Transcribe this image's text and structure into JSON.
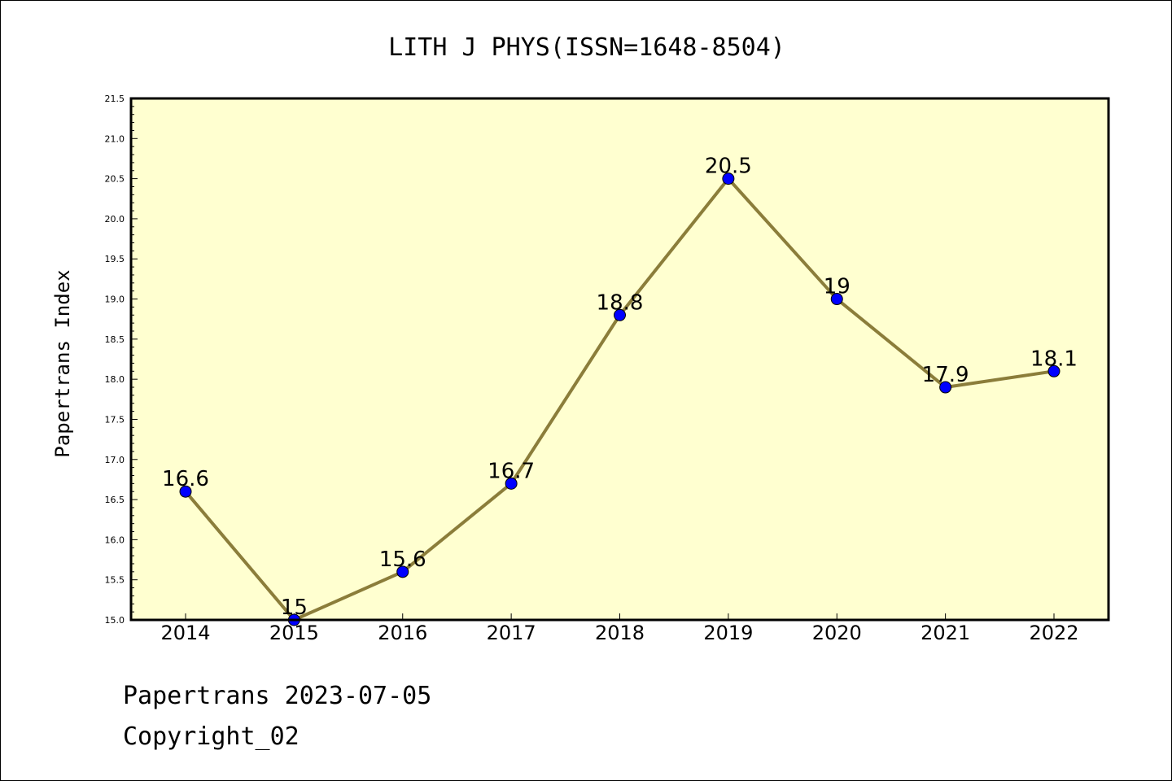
{
  "chart_data": {
    "type": "line",
    "title": "LITH J PHYS(ISSN=1648-8504)",
    "ylabel": "Papertrans Index",
    "xlabel": "",
    "categories": [
      "2014",
      "2015",
      "2016",
      "2017",
      "2018",
      "2019",
      "2020",
      "2021",
      "2022"
    ],
    "values": [
      16.6,
      15,
      15.6,
      16.7,
      18.8,
      20.5,
      19,
      17.9,
      18.1
    ],
    "data_labels": [
      "16.6",
      "15",
      "15.6",
      "16.7",
      "18.8",
      "20.5",
      "19",
      "17.9",
      "18.1"
    ],
    "ylim": [
      15.0,
      21.5
    ],
    "y_ticks": [
      "15.0",
      "15.5",
      "16.0",
      "16.5",
      "17.0",
      "17.5",
      "18.0",
      "18.5",
      "19.0",
      "19.5",
      "20.0",
      "20.5",
      "21.0",
      "21.5"
    ],
    "grid": false,
    "legend": "none",
    "colors": {
      "line": "#8b7d3a",
      "marker": "#0000ff",
      "plot_background": "#ffffd0"
    }
  },
  "footer": {
    "source": "Papertrans 2023-07-05",
    "copyright": "Copyright_02"
  }
}
